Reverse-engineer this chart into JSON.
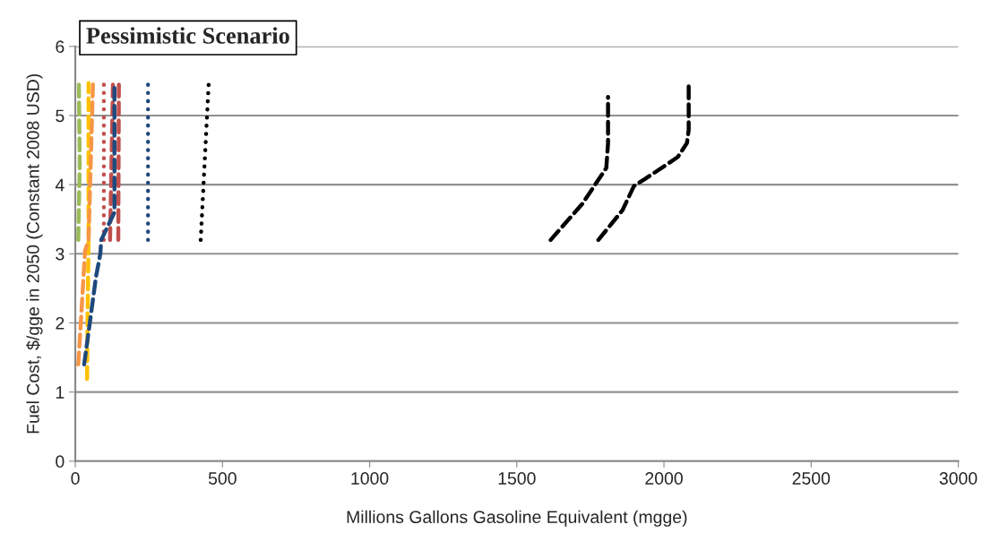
{
  "chart_data": {
    "type": "line",
    "title": "Pessimistic Scenario",
    "xlabel": "Millions Gallons Gasoline Equivalent (mgge)",
    "ylabel": "Fuel Cost, $/gge in 2050 (Constant 2008 USD)",
    "xlim": [
      0,
      3000
    ],
    "xticks": [
      0,
      500,
      1000,
      1500,
      2000,
      2500,
      3000
    ],
    "ylim": [
      0,
      6
    ],
    "yticks": [
      0,
      1,
      2,
      3,
      4,
      5,
      6
    ],
    "grid": "y",
    "legend": false,
    "series": [
      {
        "color": "#9bbb59",
        "line_style": "dashed",
        "x": [
          10,
          15,
          12
        ],
        "values": [
          3.2,
          4.3,
          5.47
        ]
      },
      {
        "color": "#ffc000",
        "line_style": "dashed",
        "x": [
          40,
          42,
          45,
          45
        ],
        "values": [
          1.19,
          2.2,
          3.2,
          5.47
        ]
      },
      {
        "color": "#f79646",
        "line_style": "dashed",
        "x": [
          10,
          20,
          33,
          45,
          60
        ],
        "values": [
          1.4,
          2.1,
          3.04,
          3.2,
          5.47
        ]
      },
      {
        "color": "#c0504d",
        "line_style": "dotted",
        "x": [
          97,
          97
        ],
        "values": [
          3.2,
          5.45
        ]
      },
      {
        "color": "#c0504d",
        "line_style": "dashed",
        "x": [
          118,
          128
        ],
        "values": [
          3.2,
          5.47
        ]
      },
      {
        "color": "#c0504d",
        "line_style": "dashed",
        "x": [
          146,
          148
        ],
        "values": [
          3.2,
          5.47
        ]
      },
      {
        "color": "#1f497d",
        "line_style": "dashed",
        "x": [
          30,
          55,
          70,
          85,
          88,
          133,
          133
        ],
        "values": [
          1.4,
          2.18,
          2.66,
          3.0,
          3.2,
          3.6,
          5.47
        ]
      },
      {
        "color": "#1f497d",
        "line_style": "dotted",
        "x": [
          247,
          247
        ],
        "values": [
          3.2,
          5.45
        ]
      },
      {
        "color": "#000000",
        "line_style": "dotted",
        "x": [
          426,
          453
        ],
        "values": [
          3.2,
          5.45
        ]
      },
      {
        "color": "#000000",
        "line_style": "dashed",
        "x": [
          1615,
          1722,
          1804,
          1810,
          1810
        ],
        "values": [
          3.2,
          3.72,
          4.24,
          4.6,
          5.27
        ]
      },
      {
        "color": "#000000",
        "line_style": "dashed",
        "x": [
          1777,
          1859,
          1898,
          1935,
          2047,
          2078,
          2084,
          2084
        ],
        "values": [
          3.2,
          3.63,
          3.98,
          4.08,
          4.4,
          4.6,
          4.79,
          5.5
        ]
      }
    ]
  }
}
